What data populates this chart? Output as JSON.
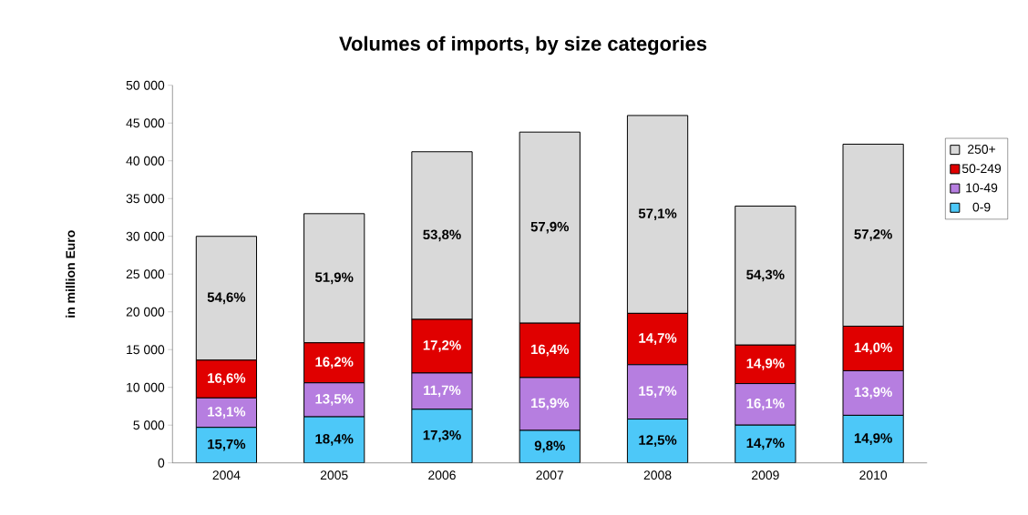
{
  "chart_data": {
    "type": "bar",
    "stacked": true,
    "title": "Volumes of imports, by size categories",
    "ylabel": "in million Euro",
    "categories": [
      "2004",
      "2005",
      "2006",
      "2007",
      "2008",
      "2009",
      "2010"
    ],
    "series": [
      {
        "name": "0-9",
        "color": "#4dc8f8",
        "values": [
          4700,
          6100,
          7100,
          4300,
          5800,
          5000,
          6300
        ]
      },
      {
        "name": "10-49",
        "color": "#b67ee0",
        "values": [
          3900,
          4500,
          4800,
          7000,
          7200,
          5500,
          5900
        ]
      },
      {
        "name": "50-249",
        "color": "#e00000",
        "values": [
          5000,
          5300,
          7100,
          7200,
          6800,
          5100,
          5900
        ]
      },
      {
        "name": "250+",
        "color": "#d9d9d9",
        "values": [
          16400,
          17100,
          22200,
          25300,
          26200,
          18400,
          24100
        ]
      }
    ],
    "annotations": [
      "15,7%",
      "18,4%",
      "17,3%",
      "9,8%",
      "12,5%",
      "14,7%",
      "14,9%",
      "13,1%",
      "13,5%",
      "11,7%",
      "15,9%",
      "15,7%",
      "16,1%",
      "13,9%",
      "16,6%",
      "16,2%",
      "17,2%",
      "16,4%",
      "14,7%",
      "14,9%",
      "14,0%",
      "54,6%",
      "51,9%",
      "53,8%",
      "57,9%",
      "57,1%",
      "54,3%",
      "57,2%"
    ],
    "ylim": [
      0,
      50000
    ],
    "yticks": [
      {
        "value": 0,
        "label": "0"
      },
      {
        "value": 5000,
        "label": "5 000"
      },
      {
        "value": 10000,
        "label": "10 000"
      },
      {
        "value": 15000,
        "label": "15 000"
      },
      {
        "value": 20000,
        "label": "20 000"
      },
      {
        "value": 25000,
        "label": "25 000"
      },
      {
        "value": 30000,
        "label": "30 000"
      },
      {
        "value": 35000,
        "label": "35 000"
      },
      {
        "value": 40000,
        "label": "40 000"
      },
      {
        "value": 45000,
        "label": "45 000"
      },
      {
        "value": 50000,
        "label": "50 000"
      }
    ],
    "grid": false,
    "legend": "right"
  }
}
